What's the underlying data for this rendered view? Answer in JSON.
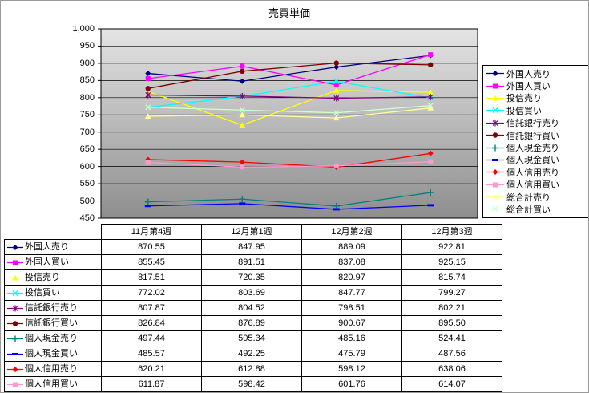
{
  "chart_data": {
    "type": "line",
    "title": "売買単価",
    "categories": [
      "11月第4週",
      "12月第1週",
      "12月第2週",
      "12月第3週"
    ],
    "ylim": [
      450,
      1000
    ],
    "y_tick_step": 50,
    "y_tick_labels": [
      "1,000",
      "950",
      "900",
      "850",
      "800",
      "750",
      "700",
      "650",
      "600",
      "550",
      "500",
      "450"
    ],
    "grid": true,
    "legend_position": "right",
    "plot_bg_top": "#e4e4e4",
    "plot_bg_bottom": "#8e8e8e",
    "series": [
      {
        "name": "外国人売り",
        "color": "#000080",
        "marker": "diamond",
        "values": [
          870.55,
          847.95,
          889.09,
          922.81
        ]
      },
      {
        "name": "外国人買い",
        "color": "#FF00FF",
        "marker": "square",
        "values": [
          855.45,
          891.51,
          837.08,
          925.15
        ]
      },
      {
        "name": "投信売り",
        "color": "#FFFF00",
        "marker": "triangle",
        "values": [
          817.51,
          720.35,
          820.97,
          815.74
        ]
      },
      {
        "name": "投信買い",
        "color": "#00FFFF",
        "marker": "x",
        "values": [
          772.02,
          803.69,
          847.77,
          799.27
        ]
      },
      {
        "name": "信託銀行売り",
        "color": "#800080",
        "marker": "star",
        "values": [
          807.87,
          804.52,
          798.51,
          802.21
        ]
      },
      {
        "name": "信託銀行買い",
        "color": "#800000",
        "marker": "circle",
        "values": [
          826.84,
          876.89,
          900.67,
          895.5
        ]
      },
      {
        "name": "個人現金売り",
        "color": "#008080",
        "marker": "plus",
        "values": [
          497.44,
          505.34,
          485.16,
          524.41
        ]
      },
      {
        "name": "個人現金買い",
        "color": "#0000FF",
        "marker": "dash",
        "values": [
          485.57,
          492.25,
          475.79,
          487.56
        ]
      },
      {
        "name": "個人信用売り",
        "color": "#FF0000",
        "marker": "diamond",
        "values": [
          620.21,
          612.88,
          598.12,
          638.06
        ]
      },
      {
        "name": "個人信用買い",
        "color": "#FF99CC",
        "marker": "square",
        "values": [
          611.87,
          598.42,
          601.76,
          614.07
        ]
      },
      {
        "name": "総合計売り",
        "color": "#FFFF99",
        "marker": "triangle",
        "values": [
          746,
          750,
          741,
          770
        ]
      },
      {
        "name": "総合計買い",
        "color": "#CCFFCC",
        "marker": "x",
        "values": [
          772,
          764,
          756,
          777
        ]
      }
    ]
  },
  "table": {
    "corner": "",
    "columns": [
      "11月第4週",
      "12月第1週",
      "12月第2週",
      "12月第3週"
    ],
    "rows": [
      {
        "label": "外国人売り",
        "cells": [
          "870.55",
          "847.95",
          "889.09",
          "922.81"
        ]
      },
      {
        "label": "外国人買い",
        "cells": [
          "855.45",
          "891.51",
          "837.08",
          "925.15"
        ]
      },
      {
        "label": "投信売り",
        "cells": [
          "817.51",
          "720.35",
          "820.97",
          "815.74"
        ]
      },
      {
        "label": "投信買い",
        "cells": [
          "772.02",
          "803.69",
          "847.77",
          "799.27"
        ]
      },
      {
        "label": "信託銀行売り",
        "cells": [
          "807.87",
          "804.52",
          "798.51",
          "802.21"
        ]
      },
      {
        "label": "信託銀行買い",
        "cells": [
          "826.84",
          "876.89",
          "900.67",
          "895.50"
        ]
      },
      {
        "label": "個人現金売り",
        "cells": [
          "497.44",
          "505.34",
          "485.16",
          "524.41"
        ]
      },
      {
        "label": "個人現金買い",
        "cells": [
          "485.57",
          "492.25",
          "475.79",
          "487.56"
        ]
      },
      {
        "label": "個人信用売り",
        "cells": [
          "620.21",
          "612.88",
          "598.12",
          "638.06"
        ]
      },
      {
        "label": "個人信用買い",
        "cells": [
          "611.87",
          "598.42",
          "601.76",
          "614.07"
        ]
      }
    ]
  }
}
